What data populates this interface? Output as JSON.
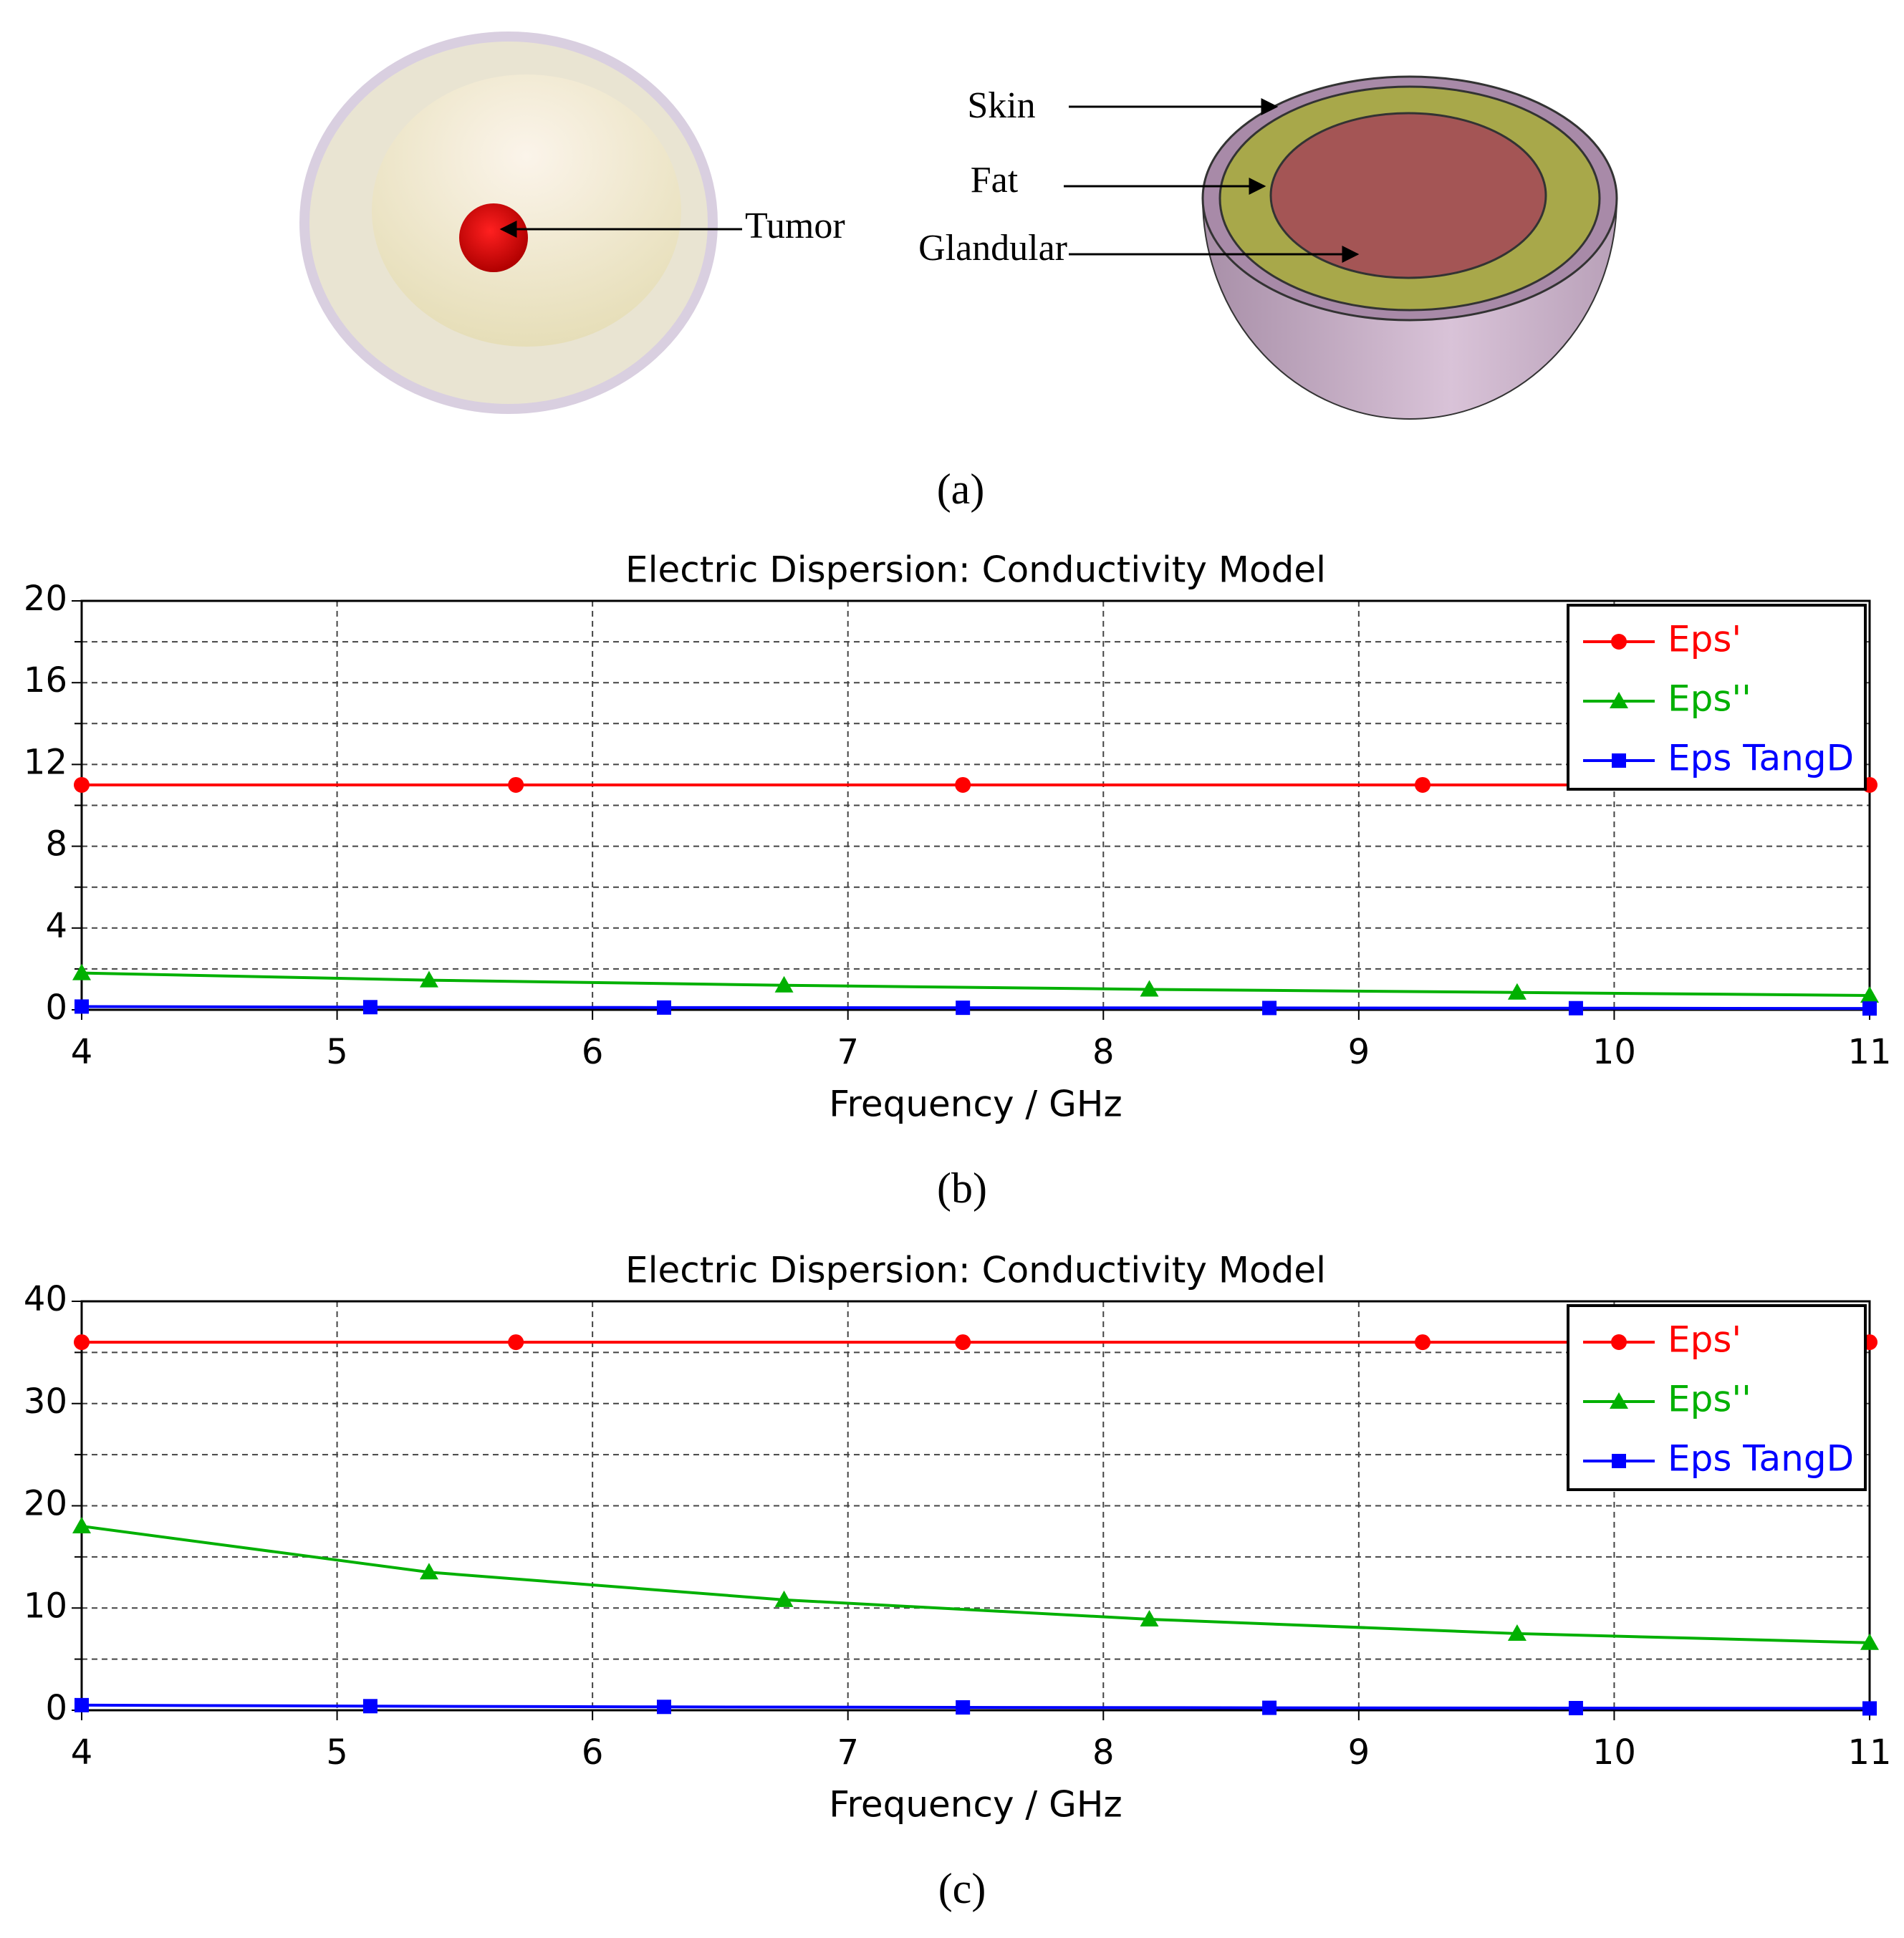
{
  "figure_a": {
    "labels": {
      "tumor": "Tumor",
      "skin": "Skin",
      "fat": "Fat",
      "glandular": "Glandular"
    },
    "caption": "(a)"
  },
  "chart_data": [
    {
      "type": "line",
      "title": "Electric Dispersion: Conductivity Model",
      "xlabel": "Frequency / GHz",
      "caption": "(b)",
      "xlim": [
        4,
        11
      ],
      "xticks": [
        4,
        5,
        6,
        7,
        8,
        9,
        10,
        11
      ],
      "ylim": [
        0,
        20
      ],
      "yticks": [
        0,
        4,
        8,
        12,
        16,
        20
      ],
      "minor_yticks": [
        2,
        6,
        10,
        14,
        18
      ],
      "grid": true,
      "legend": "upper right",
      "series": [
        {
          "name": "Eps'",
          "color": "#ff0000",
          "marker": "circle",
          "x": [
            4,
            5.7,
            7.45,
            9.25,
            11
          ],
          "values": [
            11,
            11,
            11,
            11,
            11
          ]
        },
        {
          "name": "Eps''",
          "color": "#00b000",
          "marker": "triangle",
          "x": [
            4,
            5.36,
            6.75,
            8.18,
            9.62,
            11
          ],
          "values": [
            1.8,
            1.45,
            1.2,
            1.0,
            0.85,
            0.7
          ]
        },
        {
          "name": "Eps TangD",
          "color": "#0000ff",
          "marker": "square",
          "x": [
            4,
            5.13,
            6.28,
            7.45,
            8.65,
            9.85,
            11
          ],
          "values": [
            0.16,
            0.13,
            0.11,
            0.1,
            0.09,
            0.08,
            0.065
          ]
        }
      ]
    },
    {
      "type": "line",
      "title": "Electric Dispersion: Conductivity Model",
      "xlabel": "Frequency / GHz",
      "caption": "(c)",
      "xlim": [
        4,
        11
      ],
      "xticks": [
        4,
        5,
        6,
        7,
        8,
        9,
        10,
        11
      ],
      "ylim": [
        0,
        40
      ],
      "yticks": [
        0,
        10,
        20,
        30,
        40
      ],
      "minor_yticks": [
        5,
        15,
        25,
        35
      ],
      "grid": true,
      "legend": "upper right",
      "series": [
        {
          "name": "Eps'",
          "color": "#ff0000",
          "marker": "circle",
          "x": [
            4,
            5.7,
            7.45,
            9.25,
            11
          ],
          "values": [
            36,
            36,
            36,
            36,
            36
          ]
        },
        {
          "name": "Eps''",
          "color": "#00b000",
          "marker": "triangle",
          "x": [
            4,
            5.36,
            6.75,
            8.18,
            9.62,
            11
          ],
          "values": [
            18,
            13.5,
            10.8,
            8.9,
            7.5,
            6.6
          ]
        },
        {
          "name": "Eps TangD",
          "color": "#0000ff",
          "marker": "square",
          "x": [
            4,
            5.13,
            6.28,
            7.45,
            8.65,
            9.85,
            11
          ],
          "values": [
            0.5,
            0.4,
            0.33,
            0.28,
            0.24,
            0.21,
            0.18
          ]
        }
      ]
    }
  ]
}
